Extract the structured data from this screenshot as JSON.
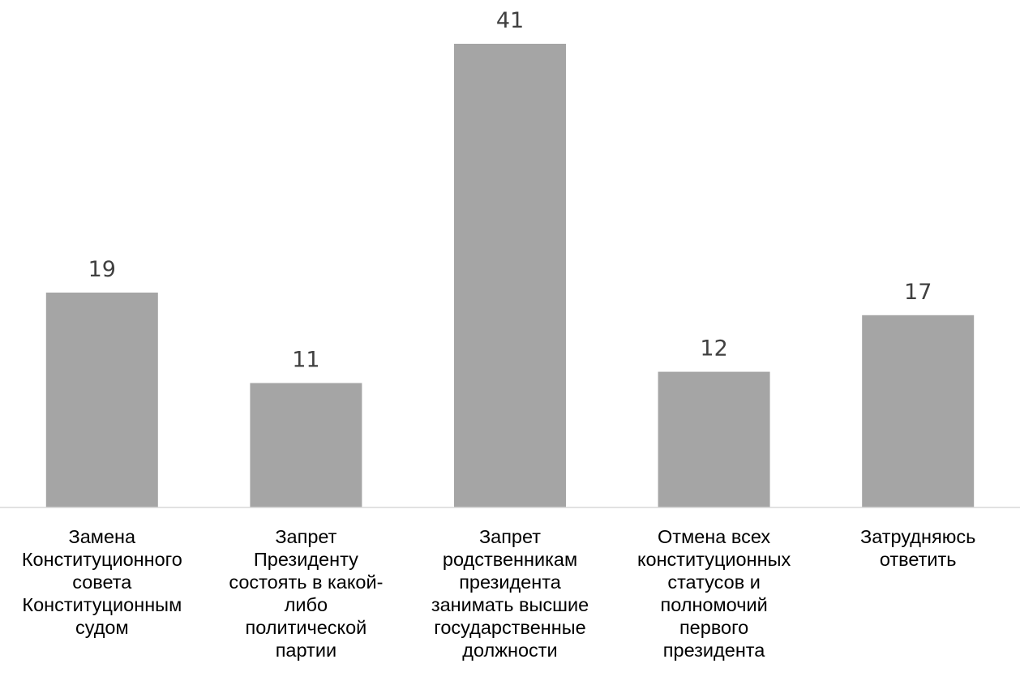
{
  "chart_data": {
    "type": "bar",
    "categories": [
      [
        "Замена",
        "Конституционного",
        "совета",
        "Конституционным",
        "судом"
      ],
      [
        "Запрет",
        "Президенту",
        "состоять в какой-",
        "либо",
        "политической",
        "партии"
      ],
      [
        "Запрет",
        "родственникам",
        "президента",
        "занимать высшие",
        "государственные",
        "должности"
      ],
      [
        "Отмена всех",
        "конституционных",
        "статусов и",
        "полномочий",
        "первого",
        "президента"
      ],
      [
        "Затрудняюсь",
        "ответить"
      ]
    ],
    "values": [
      19,
      11,
      41,
      12,
      17
    ],
    "data_labels": [
      "19",
      "11",
      "41",
      "12",
      "17"
    ],
    "ylim": [
      0,
      41
    ],
    "grid": false,
    "legend": "none",
    "colors": {
      "bar": "#a5a5a5",
      "axis": "#d9d9d9",
      "label": "#404040"
    }
  }
}
